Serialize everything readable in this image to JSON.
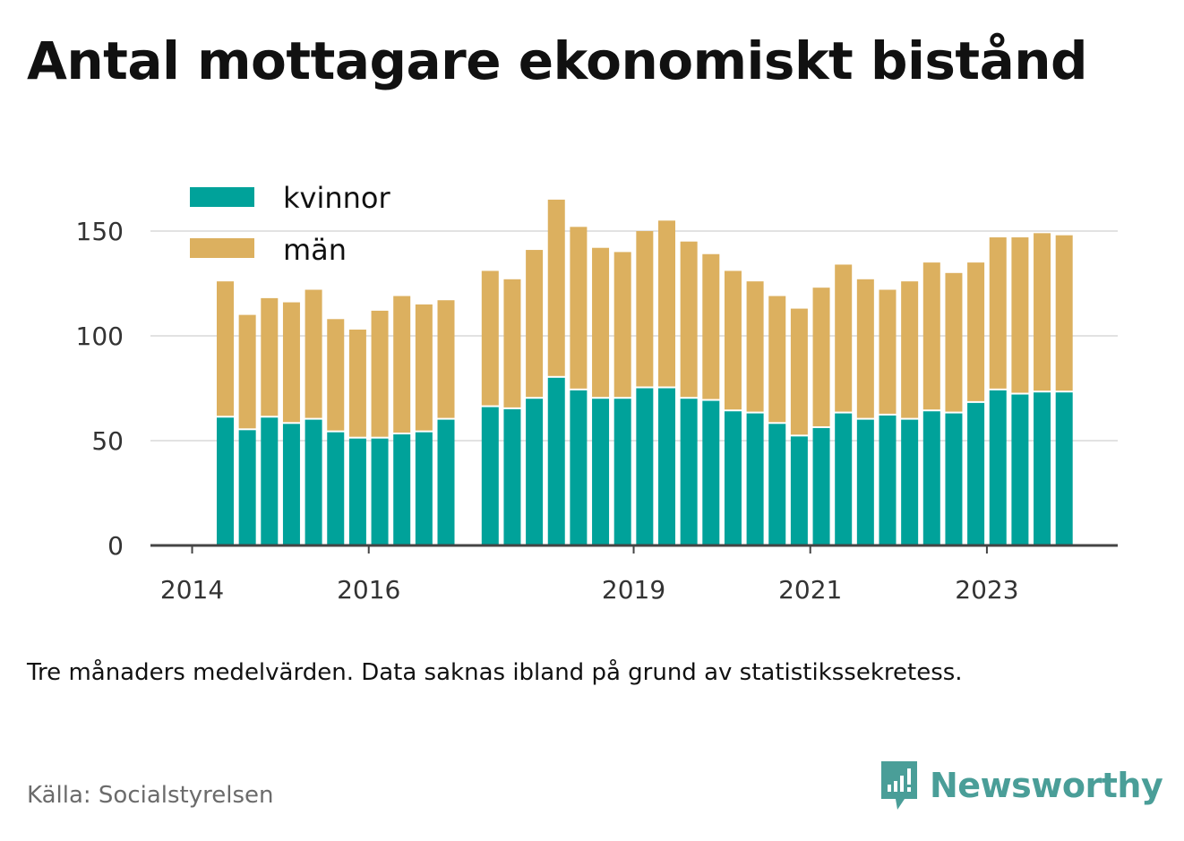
{
  "header": {
    "title": "Antal mottagare ekonomiskt bistånd"
  },
  "footer": {
    "note": "Tre månaders medelvärden. Data saknas ibland på grund av statistikssekretess.",
    "source": "Källa: Socialstyrelsen",
    "brand": "Newsworthy"
  },
  "colors": {
    "kvinnor": "#00a29a",
    "man": "#dcb05f",
    "grid": "#e2e2e2",
    "axis": "#444444",
    "brand": "#4a9e98"
  },
  "chart_data": {
    "type": "bar",
    "stacked": true,
    "x": [
      "2014-Q2",
      "2014-Q3",
      "2014-Q4",
      "2015-Q1",
      "2015-Q2",
      "2015-Q3",
      "2015-Q4",
      "2016-Q1",
      "2016-Q2",
      "2016-Q3",
      "2016-Q4",
      "2017-Q1",
      "2017-Q2",
      "2017-Q3",
      "2017-Q4",
      "2018-Q1",
      "2018-Q2",
      "2018-Q3",
      "2018-Q4",
      "2019-Q1",
      "2019-Q2",
      "2019-Q3",
      "2019-Q4",
      "2020-Q1",
      "2020-Q2",
      "2020-Q3",
      "2020-Q4",
      "2021-Q1",
      "2021-Q2",
      "2021-Q3",
      "2021-Q4",
      "2022-Q1",
      "2022-Q2",
      "2022-Q3",
      "2022-Q4",
      "2023-Q1",
      "2023-Q2",
      "2023-Q3",
      "2023-Q4"
    ],
    "series": [
      {
        "name": "kvinnor",
        "values": [
          61,
          55,
          61,
          58,
          60,
          54,
          51,
          51,
          53,
          54,
          60,
          null,
          66,
          65,
          70,
          80,
          74,
          70,
          70,
          75,
          75,
          70,
          69,
          64,
          63,
          58,
          52,
          56,
          63,
          60,
          62,
          60,
          64,
          63,
          68,
          74,
          72,
          73,
          73
        ]
      },
      {
        "name": "män",
        "values": [
          65,
          55,
          57,
          58,
          62,
          54,
          52,
          61,
          66,
          61,
          57,
          null,
          65,
          62,
          71,
          85,
          78,
          72,
          70,
          75,
          80,
          75,
          70,
          67,
          63,
          61,
          61,
          67,
          71,
          67,
          60,
          66,
          71,
          67,
          67,
          73,
          75,
          76,
          75
        ]
      }
    ],
    "yticks": [
      0,
      50,
      100,
      150
    ],
    "xticks": [
      {
        "label": "2014",
        "x": "2014-Q1"
      },
      {
        "label": "2016",
        "x": "2016-Q1"
      },
      {
        "label": "2019",
        "x": "2019-Q1"
      },
      {
        "label": "2021",
        "x": "2021-Q1"
      },
      {
        "label": "2023",
        "x": "2023-Q1"
      }
    ],
    "ylim": [
      0,
      165
    ],
    "grid": true,
    "legend_position": "top-left"
  }
}
